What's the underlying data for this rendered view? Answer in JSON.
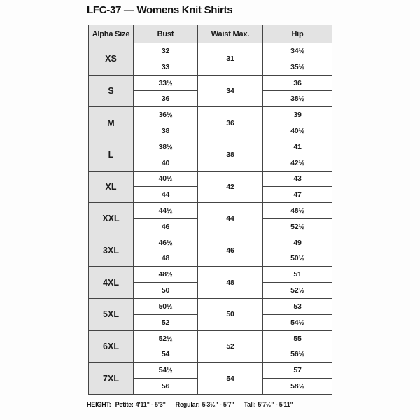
{
  "title": "LFC-37 — Womens Knit Shirts",
  "table": {
    "headers": [
      "Alpha Size",
      "Bust",
      "Waist Max.",
      "Hip"
    ],
    "sizes": [
      {
        "size": "XS",
        "bust": [
          "32",
          "33"
        ],
        "waist": "31",
        "hip": [
          "34½",
          "35½"
        ]
      },
      {
        "size": "S",
        "bust": [
          "33½",
          "36"
        ],
        "waist": "34",
        "hip": [
          "36",
          "38½"
        ]
      },
      {
        "size": "M",
        "bust": [
          "36½",
          "38"
        ],
        "waist": "36",
        "hip": [
          "39",
          "40½"
        ]
      },
      {
        "size": "L",
        "bust": [
          "38½",
          "40"
        ],
        "waist": "38",
        "hip": [
          "41",
          "42½"
        ]
      },
      {
        "size": "XL",
        "bust": [
          "40½",
          "44"
        ],
        "waist": "42",
        "hip": [
          "43",
          "47"
        ]
      },
      {
        "size": "XXL",
        "bust": [
          "44½",
          "46"
        ],
        "waist": "44",
        "hip": [
          "48½",
          "52½"
        ]
      },
      {
        "size": "3XL",
        "bust": [
          "46½",
          "48"
        ],
        "waist": "46",
        "hip": [
          "49",
          "50½"
        ]
      },
      {
        "size": "4XL",
        "bust": [
          "48½",
          "50"
        ],
        "waist": "48",
        "hip": [
          "51",
          "52½"
        ]
      },
      {
        "size": "5XL",
        "bust": [
          "50½",
          "52"
        ],
        "waist": "50",
        "hip": [
          "53",
          "54½"
        ]
      },
      {
        "size": "6XL",
        "bust": [
          "52½",
          "54"
        ],
        "waist": "52",
        "hip": [
          "55",
          "56½"
        ]
      },
      {
        "size": "7XL",
        "bust": [
          "54½",
          "56"
        ],
        "waist": "54",
        "hip": [
          "57",
          "58½"
        ]
      }
    ]
  },
  "footer": {
    "height_label": "HEIGHT:",
    "segments": [
      {
        "label": "Petite:",
        "value": "4'11\" - 5'3\""
      },
      {
        "label": "Regular:",
        "value": "5'3½\" - 5'7\""
      },
      {
        "label": "Tall:",
        "value": "5'7½\" - 5'11\""
      }
    ]
  },
  "colors": {
    "header_bg": "#e3e3e3",
    "border": "#454545",
    "text": "#1c1c1c",
    "page_bg": "#fdfdfd"
  }
}
